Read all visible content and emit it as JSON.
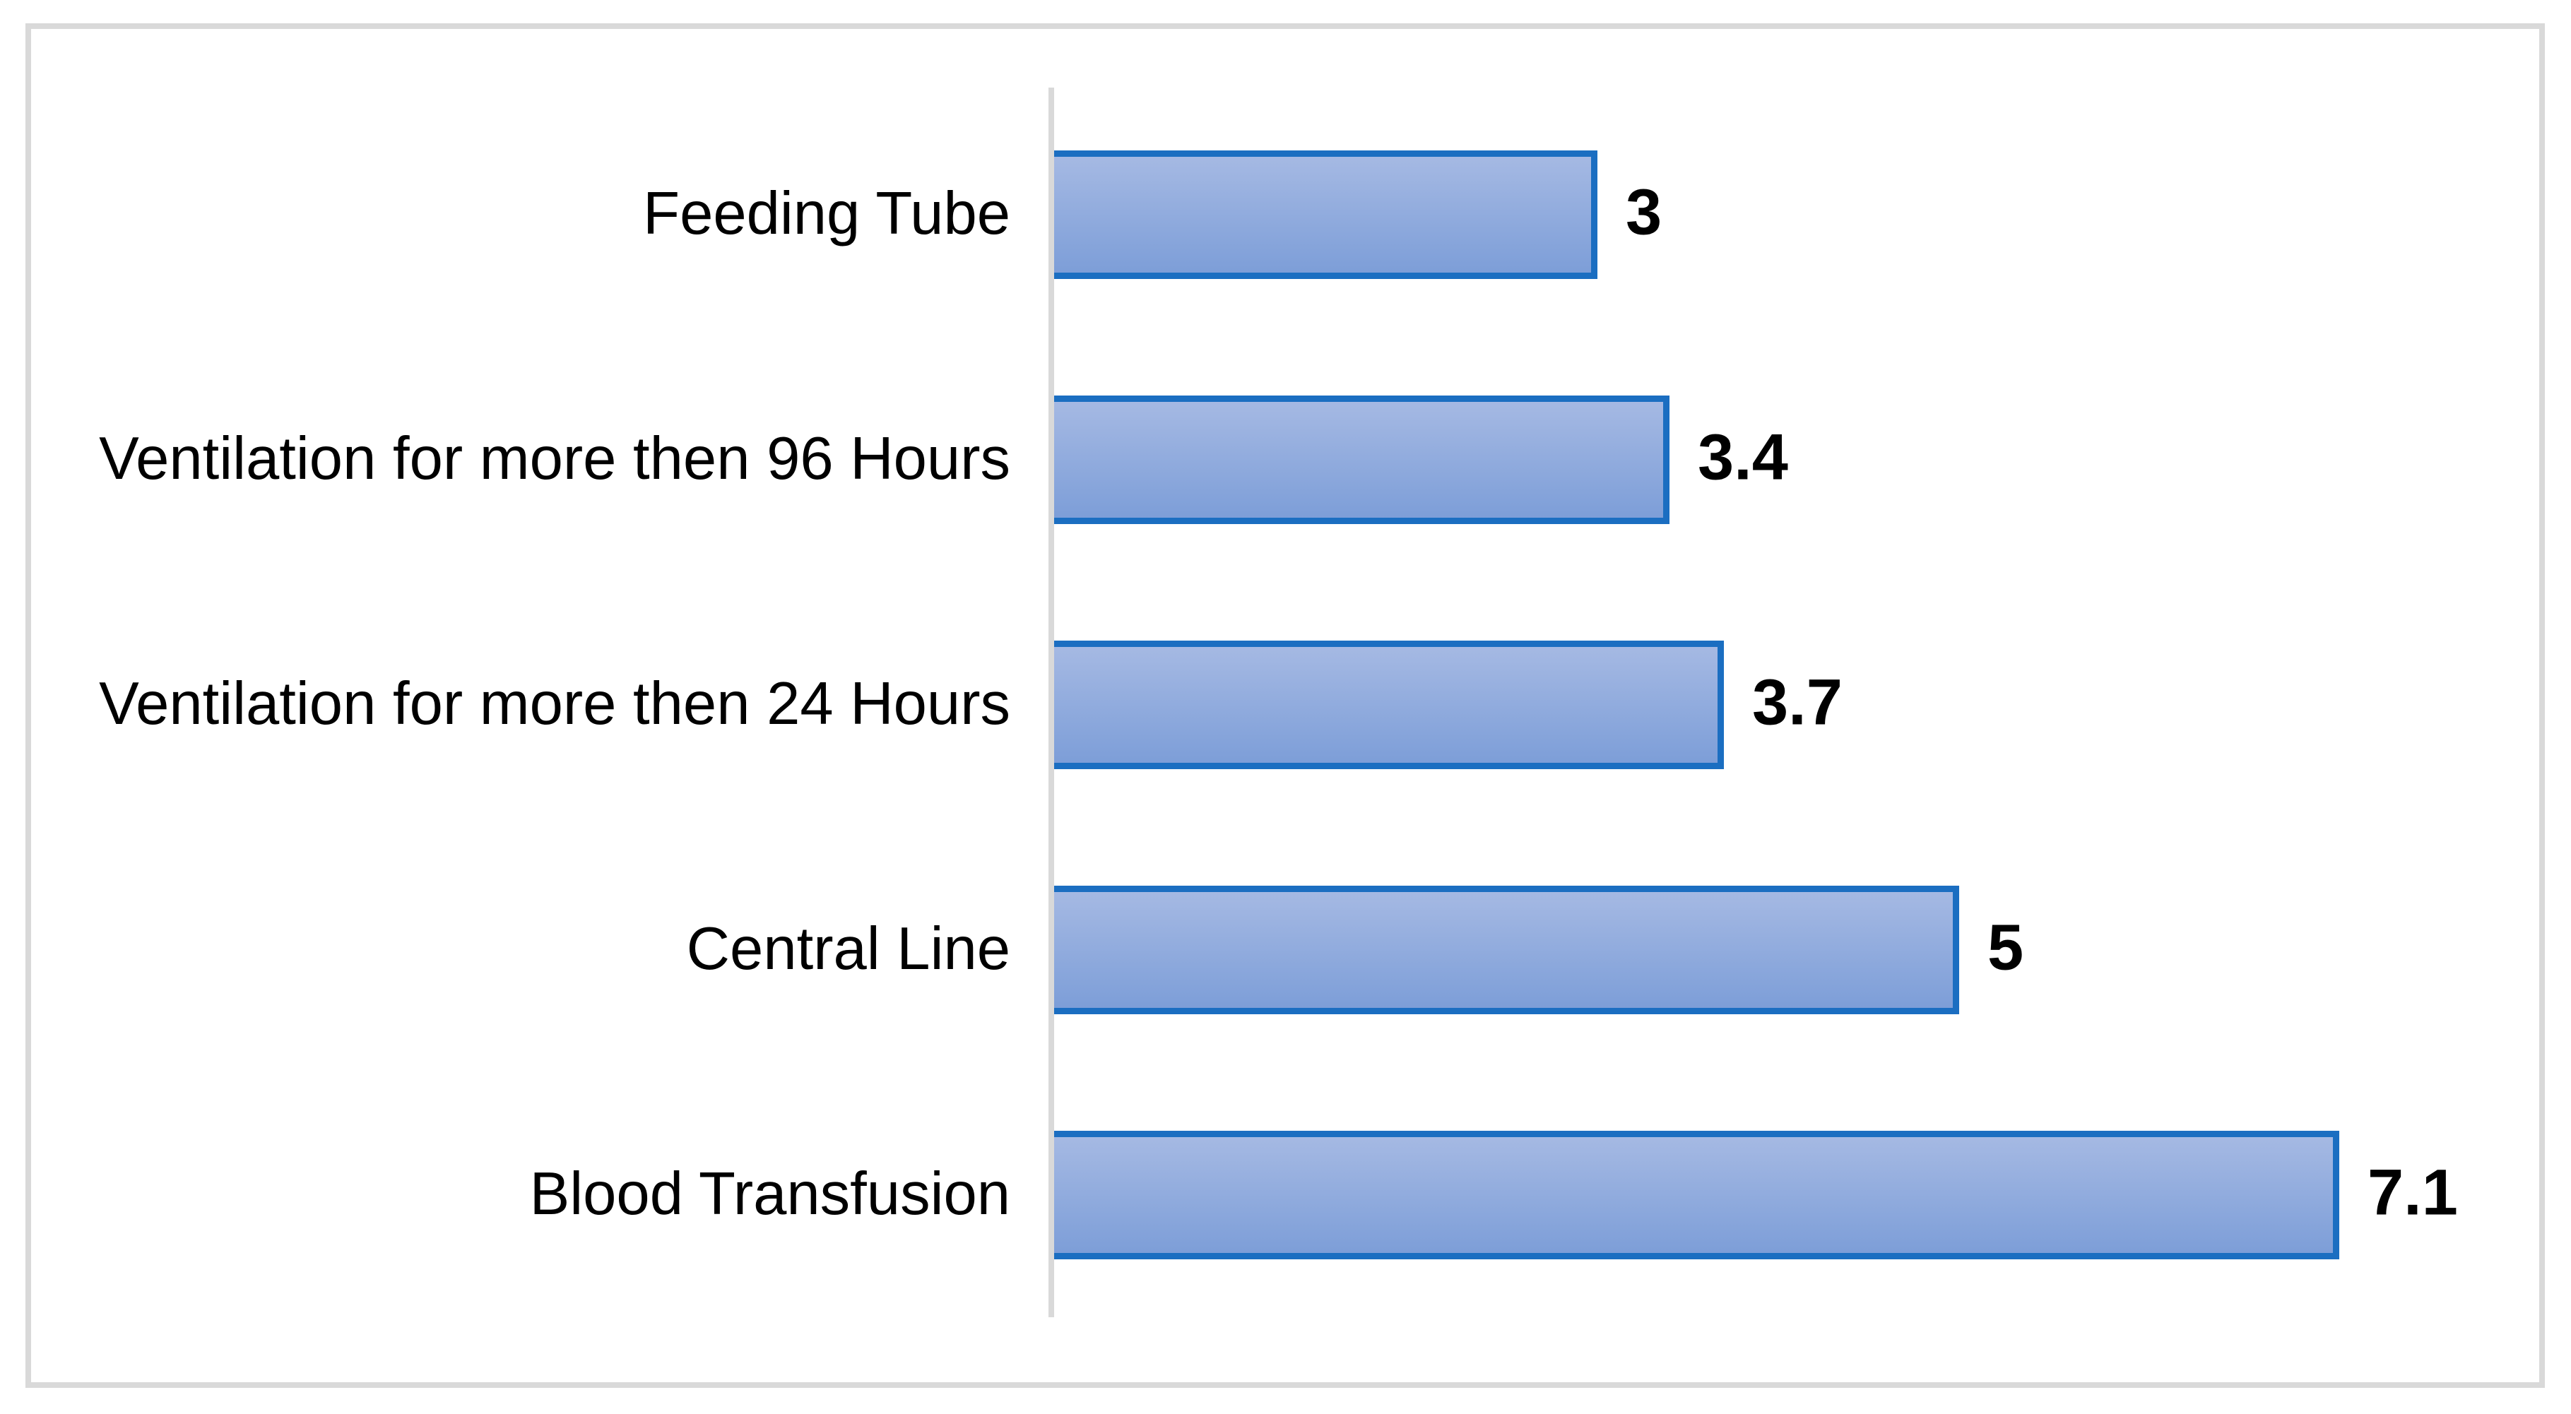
{
  "chart_data": {
    "type": "bar",
    "orientation": "horizontal",
    "title": "",
    "xlabel": "",
    "ylabel": "",
    "categories": [
      "Feeding Tube",
      "Ventilation for more then 96 Hours",
      "Ventilation for more then 24 Hours",
      "Central Line",
      "Blood Transfusion"
    ],
    "values": [
      3,
      3.4,
      3.7,
      5,
      7.1
    ],
    "xlim": [
      0,
      8
    ],
    "grid": false,
    "legend": false,
    "value_label_position": "end-of-bar",
    "style": {
      "bar_fill_top": "#A5B9E3",
      "bar_fill_bottom": "#7D9ED8",
      "bar_border": "#1B6EC1",
      "axis_line_color": "#D9D9D9",
      "frame_border_color": "#D9D9D9",
      "label_color": "#000000",
      "background": "#FFFFFF"
    }
  }
}
